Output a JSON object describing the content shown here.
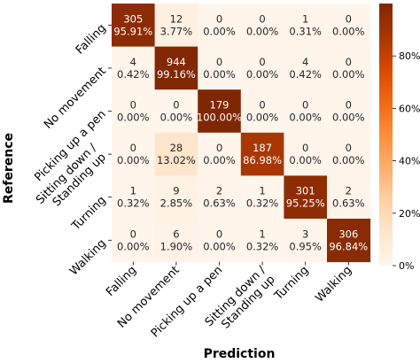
{
  "chart_data": {
    "type": "heatmap",
    "title": "",
    "xlabel": "Prediction",
    "ylabel": "Reference",
    "row_labels": [
      [
        "Falling"
      ],
      [
        "No movement"
      ],
      [
        "Picking up a pen"
      ],
      [
        "Sitting down /",
        "Standing up"
      ],
      [
        "Turning"
      ],
      [
        "Walking"
      ]
    ],
    "col_labels": [
      [
        "Falling"
      ],
      [
        "No movement"
      ],
      [
        "Picking up a pen"
      ],
      [
        "Sitting down /",
        "Standing up"
      ],
      [
        "Turning"
      ],
      [
        "Walking"
      ]
    ],
    "counts": [
      [
        305,
        12,
        0,
        0,
        1,
        0
      ],
      [
        4,
        944,
        0,
        0,
        4,
        0
      ],
      [
        0,
        0,
        179,
        0,
        0,
        0
      ],
      [
        0,
        28,
        0,
        187,
        0,
        0
      ],
      [
        1,
        9,
        2,
        1,
        301,
        2
      ],
      [
        0,
        6,
        0,
        1,
        3,
        306
      ]
    ],
    "percentages": [
      [
        "95.91%",
        "3.77%",
        "0.00%",
        "0.00%",
        "0.31%",
        "0.00%"
      ],
      [
        "0.42%",
        "99.16%",
        "0.00%",
        "0.00%",
        "0.42%",
        "0.00%"
      ],
      [
        "0.00%",
        "0.00%",
        "100.00%",
        "0.00%",
        "0.00%",
        "0.00%"
      ],
      [
        "0.00%",
        "13.02%",
        "0.00%",
        "86.98%",
        "0.00%",
        "0.00%"
      ],
      [
        "0.32%",
        "2.85%",
        "0.63%",
        "0.32%",
        "95.25%",
        "0.63%"
      ],
      [
        "0.00%",
        "1.90%",
        "0.00%",
        "0.32%",
        "0.95%",
        "96.84%"
      ]
    ],
    "colorbar": {
      "range": [
        0,
        100
      ],
      "ticks": [
        0,
        20,
        40,
        60,
        80
      ],
      "tick_labels": [
        "0%",
        "20%",
        "40%",
        "60%",
        "80%"
      ],
      "colormap": "Oranges",
      "low_color": "#fff5eb",
      "high_color": "#7f2704"
    },
    "grid": false,
    "legend": "colorbar-right"
  }
}
